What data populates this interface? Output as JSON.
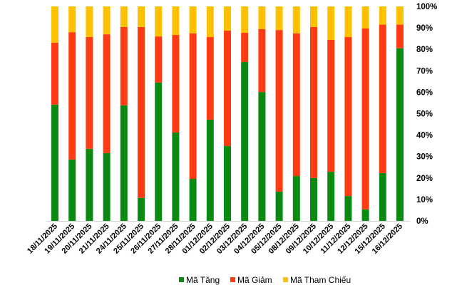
{
  "chart_data": {
    "type": "bar",
    "stacked": true,
    "normalized": true,
    "title": "",
    "xlabel": "",
    "ylabel": "",
    "ylim": [
      0,
      100
    ],
    "yticks": [
      "0%",
      "10%",
      "20%",
      "30%",
      "40%",
      "50%",
      "60%",
      "70%",
      "80%",
      "90%",
      "100%"
    ],
    "y_axis_side": "right",
    "legend_position": "bottom",
    "grid": false,
    "categories": [
      "18/11/2025",
      "19/11/2025",
      "20/11/2025",
      "21/11/2025",
      "24/11/2025",
      "25/11/2025",
      "26/11/2025",
      "27/11/2025",
      "28/11/2025",
      "01/12/2025",
      "02/12/2025",
      "03/12/2025",
      "04/12/2025",
      "05/12/2025",
      "08/12/2025",
      "09/12/2025",
      "10/12/2025",
      "11/12/2025",
      "12/12/2025",
      "15/12/2025",
      "16/12/2025"
    ],
    "series": [
      {
        "name": "Mã Tăng",
        "color": "#0b8a12",
        "values": [
          54.2,
          28.6,
          33.6,
          31.6,
          53.9,
          10.7,
          64.5,
          41.2,
          19.6,
          47.2,
          34.9,
          74.1,
          60.1,
          13.6,
          20.9,
          20.0,
          22.9,
          11.6,
          5.4,
          22.3,
          80.5
        ]
      },
      {
        "name": "Mã Giảm",
        "color": "#ff3b14",
        "values": [
          28.9,
          59.4,
          52.1,
          55.4,
          36.5,
          79.7,
          21.5,
          45.5,
          67.8,
          38.5,
          53.8,
          13.6,
          29.3,
          75.4,
          66.5,
          70.4,
          61.5,
          74.1,
          84.3,
          69.2,
          11.0
        ]
      },
      {
        "name": "Mã Tham Chiếu",
        "color": "#ffc000",
        "values": [
          16.9,
          12.0,
          14.3,
          13.0,
          9.6,
          9.6,
          14.0,
          13.3,
          12.6,
          14.3,
          11.3,
          12.3,
          10.6,
          11.0,
          12.6,
          9.6,
          15.6,
          14.3,
          10.3,
          8.5,
          8.5
        ]
      }
    ]
  }
}
